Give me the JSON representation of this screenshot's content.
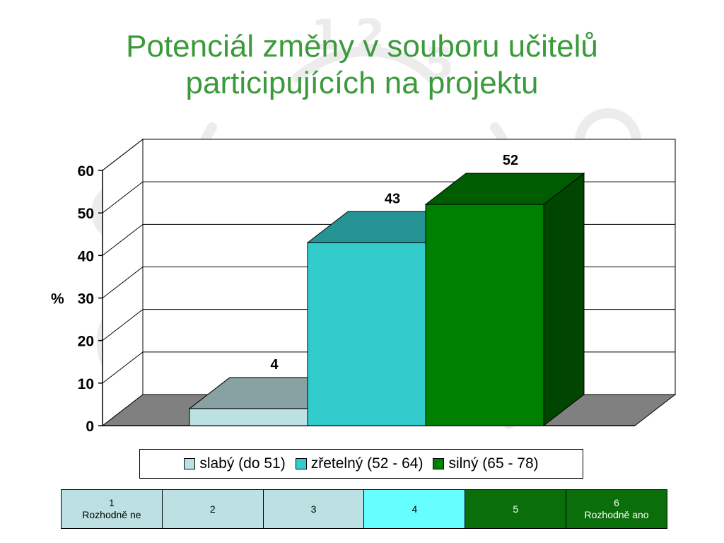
{
  "slide": {
    "title_line1": "Potenciál změny v souboru učitelů",
    "title_line2": "participujících na projektu"
  },
  "colors": {
    "title": "#3b9a3b",
    "slaby": "#bde0e2",
    "zretelny": "#33cccc",
    "silny": "#008000"
  },
  "chart_data": {
    "type": "bar",
    "title": "",
    "ylabel": "%",
    "xlabel": "",
    "ylim": [
      0,
      60
    ],
    "yticks": [
      0,
      10,
      20,
      30,
      40,
      50,
      60
    ],
    "grid": true,
    "legend_position": "bottom",
    "series": [
      {
        "name": "slabý (do 51)",
        "values": [
          4
        ],
        "color": "#bde0e2"
      },
      {
        "name": "zřetelný (52 - 64)",
        "values": [
          43
        ],
        "color": "#33cccc"
      },
      {
        "name": "silný (65 - 78)",
        "values": [
          52
        ],
        "color": "#008000"
      }
    ]
  },
  "legend": {
    "items": [
      {
        "label": "slabý (do 51)",
        "color": "#bde0e2"
      },
      {
        "label": "zřetelný (52 - 64)",
        "color": "#33cccc"
      },
      {
        "label": "silný (65 - 78)",
        "color": "#008000"
      }
    ]
  },
  "scale": {
    "cells": [
      {
        "num": "1",
        "text": "Rozhodně ne",
        "bg": "#bde0e2",
        "fg": "#000000"
      },
      {
        "num": "2",
        "text": "",
        "bg": "#bde0e2",
        "fg": "#000000"
      },
      {
        "num": "3",
        "text": "",
        "bg": "#bde0e2",
        "fg": "#000000"
      },
      {
        "num": "4",
        "text": "",
        "bg": "#66ffff",
        "fg": "#000000"
      },
      {
        "num": "5",
        "text": "",
        "bg": "#0a6e0a",
        "fg": "#ffffff"
      },
      {
        "num": "6",
        "text": "Rozhodně ano",
        "bg": "#0a6e0a",
        "fg": "#ffffff"
      }
    ]
  }
}
